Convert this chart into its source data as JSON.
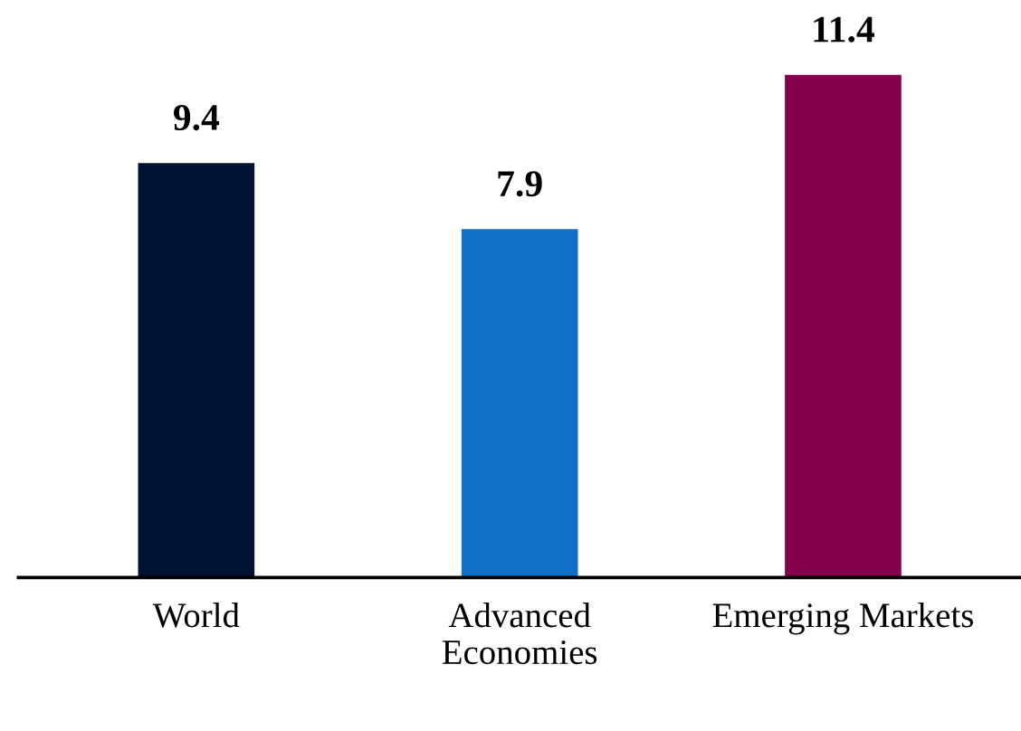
{
  "chart_data": {
    "type": "bar",
    "categories": [
      "World",
      "Advanced\nEconomies",
      "Emerging Markets"
    ],
    "values": [
      9.4,
      7.9,
      11.4
    ],
    "colors": [
      "#001233",
      "#1170c8",
      "#85004b"
    ],
    "data_labels": true
  }
}
